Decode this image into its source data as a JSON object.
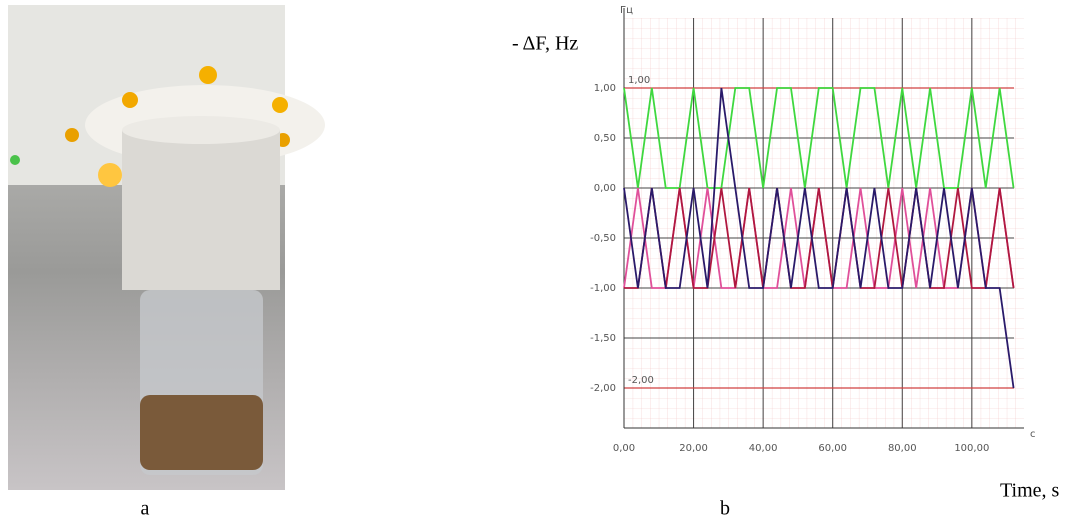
{
  "chart_data": {
    "type": "line",
    "panel_labels": [
      "a",
      "b"
    ],
    "y_label": "- ΔF, Hz",
    "x_label": "Time, s",
    "y_unit": "Гц",
    "x_unit": "с",
    "x": [
      0,
      4,
      8,
      12,
      16,
      20,
      24,
      28,
      32,
      36,
      40,
      44,
      48,
      52,
      56,
      60,
      64,
      68,
      72,
      76,
      80,
      84,
      88,
      92,
      96,
      100,
      104,
      108,
      112
    ],
    "series": [
      {
        "color": "#3fd83f",
        "values": [
          1,
          0,
          1,
          0,
          0,
          1,
          0,
          0,
          1,
          1,
          0,
          1,
          1,
          0,
          1,
          1,
          0,
          1,
          1,
          0,
          1,
          0,
          1,
          0,
          0,
          1,
          0,
          1,
          0
        ]
      },
      {
        "color": "#e0509a",
        "values": [
          -1,
          0,
          -1,
          -1,
          0,
          -1,
          0,
          -1,
          -1,
          0,
          -1,
          -1,
          0,
          -1,
          0,
          -1,
          -1,
          0,
          -1,
          -1,
          0,
          -1,
          0,
          -1,
          -1,
          0,
          -1,
          0,
          -1
        ]
      },
      {
        "color": "#b01840",
        "values": [
          -1,
          -1,
          0,
          -1,
          0,
          -1,
          -1,
          0,
          -1,
          0,
          -1,
          0,
          -1,
          -1,
          0,
          -1,
          0,
          -1,
          -1,
          0,
          -1,
          0,
          -1,
          -1,
          0,
          -1,
          -1,
          0,
          -1
        ]
      },
      {
        "color": "#2a1a6a",
        "values": [
          0,
          -1,
          0,
          -1,
          -1,
          0,
          -1,
          1,
          0,
          -1,
          -1,
          0,
          -1,
          0,
          -1,
          -1,
          0,
          -1,
          0,
          -1,
          -1,
          0,
          -1,
          0,
          -1,
          0,
          -1,
          -1,
          -2
        ]
      }
    ],
    "xlim": [
      0,
      115
    ],
    "ylim": [
      -2.4,
      1.7
    ],
    "xticks": [
      {
        "value": 0,
        "label": "0,00"
      },
      {
        "value": 20,
        "label": "20,00"
      },
      {
        "value": 40,
        "label": "40,00"
      },
      {
        "value": 60,
        "label": "60,00"
      },
      {
        "value": 80,
        "label": "80,00"
      },
      {
        "value": 100,
        "label": "100,00"
      }
    ],
    "yticks": [
      {
        "value": 1,
        "label": "1,00"
      },
      {
        "value": 0.5,
        "label": "0,50"
      },
      {
        "value": 0,
        "label": "0,00"
      },
      {
        "value": -0.5,
        "label": "-0,50"
      },
      {
        "value": -1,
        "label": "-1,00"
      },
      {
        "value": -1.5,
        "label": "-1,50"
      },
      {
        "value": -2,
        "label": "-2,00"
      }
    ],
    "ref_lines": [
      {
        "value": 1,
        "label": "1,00",
        "color": "#d04040"
      },
      {
        "value": -2,
        "label": "-2,00",
        "color": "#d04040"
      }
    ],
    "grid": true
  }
}
